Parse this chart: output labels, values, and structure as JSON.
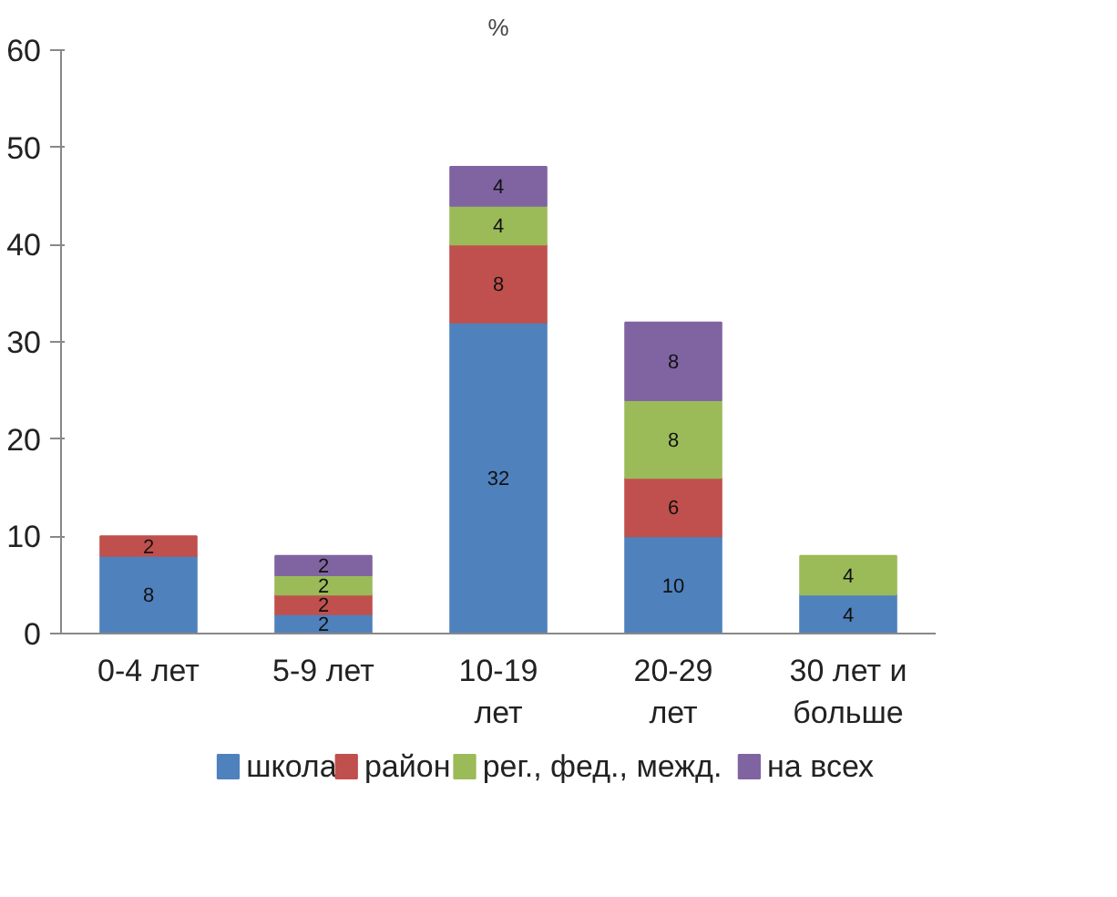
{
  "chart_data": {
    "type": "bar",
    "title": "%",
    "stacked": true,
    "categories": [
      "0-4 лет",
      "5-9 лет",
      "10-19 лет",
      "20-29 лет",
      "30 лет и больше"
    ],
    "series": [
      {
        "name": "школа",
        "color": "#4f81bd",
        "values": [
          8,
          2,
          32,
          10,
          4
        ]
      },
      {
        "name": "район",
        "color": "#c0504d",
        "values": [
          2,
          2,
          8,
          6,
          null
        ]
      },
      {
        "name": "рег., фед., межд.",
        "color": "#9bbb59",
        "values": [
          null,
          2,
          4,
          8,
          4
        ]
      },
      {
        "name": "на всех",
        "color": "#8064a2",
        "values": [
          null,
          2,
          4,
          8,
          null
        ]
      }
    ],
    "ylim": [
      0,
      60
    ],
    "yticks": [
      0,
      10,
      20,
      30,
      40,
      50,
      60
    ],
    "grid": false,
    "legend": "bottom",
    "data_labels": true
  }
}
